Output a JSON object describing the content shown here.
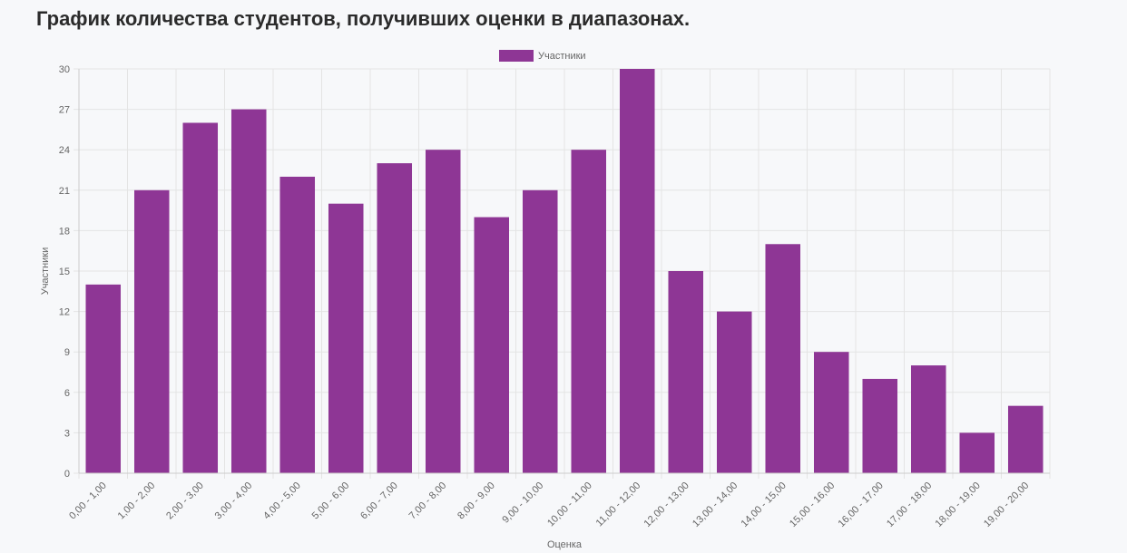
{
  "page": {
    "title": "График количества студентов, получивших оценки в диапазонах."
  },
  "colors": {
    "bar_fill": "#8e3695",
    "grid": "#e4e4e4",
    "axis": "#cccccc",
    "text": "#666666"
  },
  "chart_data": {
    "type": "bar",
    "categories": [
      "0,00 - 1,00",
      "1,00 - 2,00",
      "2,00 - 3,00",
      "3,00 - 4,00",
      "4,00 - 5,00",
      "5,00 - 6,00",
      "6,00 - 7,00",
      "7,00 - 8,00",
      "8,00 - 9,00",
      "9,00 - 10,00",
      "10,00 - 11,00",
      "11,00 - 12,00",
      "12,00 - 13,00",
      "13,00 - 14,00",
      "14,00 - 15,00",
      "15,00 - 16,00",
      "16,00 - 17,00",
      "17,00 - 18,00",
      "18,00 - 19,00",
      "19,00 - 20,00"
    ],
    "series": [
      {
        "name": "Участники",
        "values": [
          14,
          21,
          26,
          27,
          22,
          20,
          23,
          24,
          19,
          21,
          24,
          30,
          15,
          12,
          17,
          9,
          7,
          8,
          3,
          5
        ]
      }
    ],
    "title": "График количества студентов, получивших оценки в диапазонах.",
    "xlabel": "Оценка",
    "ylabel": "Участники",
    "ylim": [
      0,
      30
    ],
    "yticks": [
      0,
      3,
      6,
      9,
      12,
      15,
      18,
      21,
      24,
      27,
      30
    ],
    "grid": true,
    "legend": "top-center"
  }
}
